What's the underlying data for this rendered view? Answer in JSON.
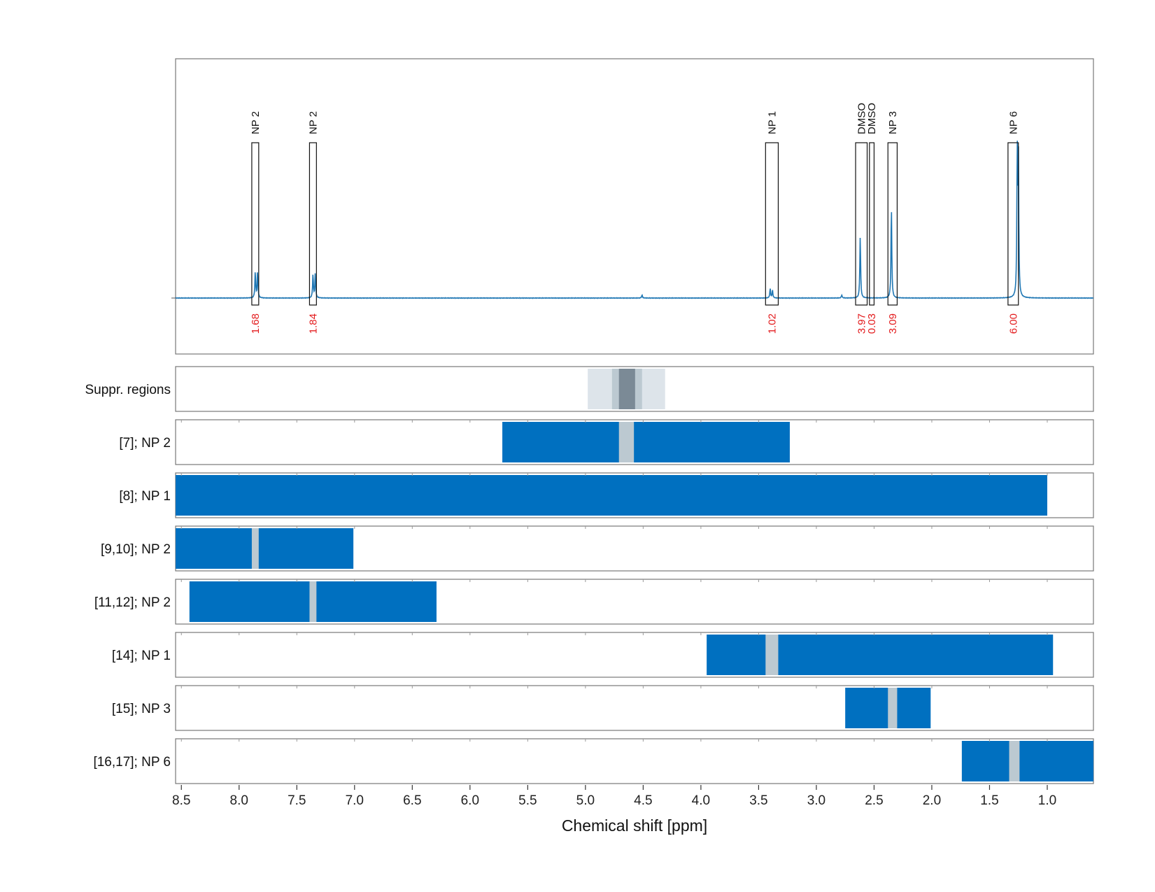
{
  "chart_data": {
    "type": "nmr_spectrum_with_region_bars",
    "xlabel": "Chemical shift [ppm]",
    "xlim": [
      8.55,
      0.6
    ],
    "x_ticks": [
      8.5,
      8.0,
      7.5,
      7.0,
      6.5,
      6.0,
      5.5,
      5.0,
      4.5,
      4.0,
      3.5,
      3.0,
      2.5,
      2.0,
      1.5,
      1.0
    ],
    "x_tick_labels": [
      "8.5",
      "8.0",
      "7.5",
      "7.0",
      "6.5",
      "6.0",
      "5.5",
      "5.0",
      "4.5",
      "4.0",
      "3.5",
      "3.0",
      "2.5",
      "2.0",
      "1.5",
      "1.0"
    ],
    "grid": true,
    "spectrum": {
      "color": "#1f77b4",
      "peaks": [
        {
          "ppm": 7.86,
          "height": 0.17
        },
        {
          "ppm": 7.84,
          "height": 0.17
        },
        {
          "ppm": 7.36,
          "height": 0.15
        },
        {
          "ppm": 7.34,
          "height": 0.16
        },
        {
          "ppm": 3.4,
          "height": 0.06
        },
        {
          "ppm": 3.38,
          "height": 0.05
        },
        {
          "ppm": 2.62,
          "height": 0.4
        },
        {
          "ppm": 2.35,
          "height": 0.59
        },
        {
          "ppm": 1.26,
          "height": 0.91
        },
        {
          "ppm": 1.25,
          "height": 0.9
        },
        {
          "ppm": 2.78,
          "height": 0.02
        },
        {
          "ppm": 4.51,
          "height": 0.02
        }
      ],
      "annotations": [
        {
          "label": "NP 2",
          "from": 7.89,
          "to": 7.83,
          "integral": "1.68"
        },
        {
          "label": "NP 2",
          "from": 7.39,
          "to": 7.33,
          "integral": "1.84"
        },
        {
          "label": "NP 1",
          "from": 3.44,
          "to": 3.33,
          "integral": "1.02"
        },
        {
          "label": "DMSO",
          "from": 2.66,
          "to": 2.56,
          "integral": "3.97"
        },
        {
          "label": "DMSO",
          "from": 2.54,
          "to": 2.5,
          "integral": "0.03"
        },
        {
          "label": "NP 3",
          "from": 2.38,
          "to": 2.3,
          "integral": "3.09"
        },
        {
          "label": "NP 6",
          "from": 1.34,
          "to": 1.25,
          "integral": "6.00"
        }
      ]
    },
    "suppression_regions": {
      "label": "Suppr. regions",
      "bands": [
        {
          "from": 4.98,
          "to": 4.31,
          "shade": "light"
        },
        {
          "from": 4.77,
          "to": 4.51,
          "shade": "medium"
        },
        {
          "from": 4.71,
          "to": 4.57,
          "shade": "dark"
        }
      ],
      "colors": {
        "light": "#dde4ea",
        "medium": "#bcc9d1",
        "dark": "#7b8a96"
      }
    },
    "region_rows": [
      {
        "label": "[7]; NP 2",
        "from": 5.72,
        "to": 3.23,
        "gaps": [
          [
            4.71,
            4.58
          ]
        ]
      },
      {
        "label": "[8]; NP 1",
        "from": 8.55,
        "to": 1.0,
        "gaps": []
      },
      {
        "label": "[9,10]; NP 2",
        "from": 8.55,
        "to": 7.01,
        "gaps": [
          [
            7.89,
            7.83
          ]
        ]
      },
      {
        "label": "[11,12]; NP 2",
        "from": 8.43,
        "to": 6.29,
        "gaps": [
          [
            7.39,
            7.33
          ]
        ]
      },
      {
        "label": "[14]; NP 1",
        "from": 3.95,
        "to": 0.95,
        "gaps": [
          [
            3.44,
            3.33
          ]
        ]
      },
      {
        "label": "[15]; NP 3",
        "from": 2.75,
        "to": 2.01,
        "gaps": [
          [
            2.38,
            2.3
          ]
        ]
      },
      {
        "label": "[16,17]; NP 6",
        "from": 1.74,
        "to": 0.6,
        "gaps": [
          [
            1.33,
            1.24
          ]
        ]
      }
    ],
    "colors": {
      "bar": "#0070c0",
      "gap": "#bcc9d1",
      "frame": "#777777",
      "grid": "#bbbbbb"
    }
  }
}
